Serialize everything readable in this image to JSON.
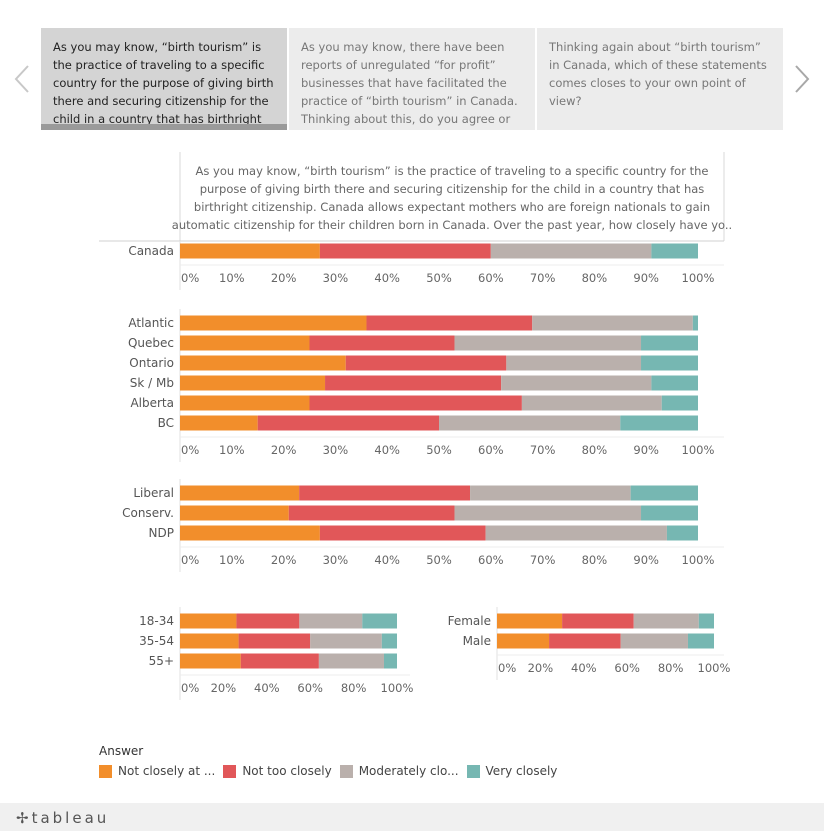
{
  "tabs": [
    {
      "text": "As you may know, “birth tourism” is the practice of traveling to a specific country for the purpose of giving birth there and securing citizenship for the child in a country that has birthright citizenship.",
      "active": true
    },
    {
      "text": "As you may know, there have been reports of unregulated “for profit” businesses that have facilitated the practice of “birth tourism” in Canada. Thinking about this, do you agree or disagree?",
      "active": false
    },
    {
      "text": " Thinking again about “birth tourism” in Canada, which of these statements comes closes to your own point of view?",
      "active": false
    }
  ],
  "question_lines": [
    "As you may know, “birth tourism” is the practice of traveling to a specific country for the",
    "purpose of giving birth there and securing citizenship for the child in a country that has",
    "birthright citizenship. Canada allows expectant mothers who are foreign nationals to gain",
    "automatic citizenship for their children born in Canada. Over the past year, how closely have yo.."
  ],
  "legend": {
    "title": "Answer",
    "items": [
      {
        "label": "Not closely at ...",
        "color": "#f28e2b"
      },
      {
        "label": "Not too closely",
        "color": "#e15759"
      },
      {
        "label": "Moderately clo...",
        "color": "#bab0ac"
      },
      {
        "label": "Very closely",
        "color": "#76b7b2"
      }
    ]
  },
  "footer": {
    "logo": "tableau"
  },
  "chart_data": [
    {
      "type": "bar",
      "stacked": true,
      "orientation": "horizontal",
      "categories": [
        "Canada"
      ],
      "series": [
        {
          "name": "Not closely at ...",
          "values": [
            27
          ]
        },
        {
          "name": "Not too closely",
          "values": [
            33
          ]
        },
        {
          "name": "Moderately clo...",
          "values": [
            31
          ]
        },
        {
          "name": "Very closely",
          "values": [
            9
          ]
        }
      ],
      "ticks": [
        "0%",
        "10%",
        "20%",
        "30%",
        "40%",
        "50%",
        "60%",
        "70%",
        "80%",
        "90%",
        "100%"
      ],
      "xlim": [
        0,
        100
      ]
    },
    {
      "type": "bar",
      "stacked": true,
      "orientation": "horizontal",
      "categories": [
        "Atlantic",
        "Quebec",
        "Ontario",
        "Sk / Mb",
        "Alberta",
        "BC"
      ],
      "series": [
        {
          "name": "Not closely at ...",
          "values": [
            36,
            25,
            32,
            28,
            25,
            15
          ]
        },
        {
          "name": "Not too closely",
          "values": [
            32,
            28,
            31,
            34,
            41,
            35
          ]
        },
        {
          "name": "Moderately clo...",
          "values": [
            31,
            36,
            26,
            29,
            27,
            35
          ]
        },
        {
          "name": "Very closely",
          "values": [
            1,
            11,
            11,
            9,
            7,
            15
          ]
        }
      ],
      "ticks": [
        "0%",
        "10%",
        "20%",
        "30%",
        "40%",
        "50%",
        "60%",
        "70%",
        "80%",
        "90%",
        "100%"
      ],
      "xlim": [
        0,
        100
      ]
    },
    {
      "type": "bar",
      "stacked": true,
      "orientation": "horizontal",
      "categories": [
        "Liberal",
        "Conserv.",
        "NDP"
      ],
      "series": [
        {
          "name": "Not closely at ...",
          "values": [
            23,
            21,
            27
          ]
        },
        {
          "name": "Not too closely",
          "values": [
            33,
            32,
            32
          ]
        },
        {
          "name": "Moderately clo...",
          "values": [
            31,
            36,
            35
          ]
        },
        {
          "name": "Very closely",
          "values": [
            13,
            11,
            6
          ]
        }
      ],
      "ticks": [
        "0%",
        "10%",
        "20%",
        "30%",
        "40%",
        "50%",
        "60%",
        "70%",
        "80%",
        "90%",
        "100%"
      ],
      "xlim": [
        0,
        100
      ]
    },
    {
      "type": "bar",
      "stacked": true,
      "orientation": "horizontal",
      "categories": [
        "18-34",
        "35-54",
        "55+"
      ],
      "series": [
        {
          "name": "Not closely at ...",
          "values": [
            26,
            27,
            28
          ]
        },
        {
          "name": "Not too closely",
          "values": [
            29,
            33,
            36
          ]
        },
        {
          "name": "Moderately clo...",
          "values": [
            29,
            33,
            30
          ]
        },
        {
          "name": "Very closely",
          "values": [
            16,
            7,
            6
          ]
        }
      ],
      "ticks": [
        "0%",
        "20%",
        "40%",
        "60%",
        "80%",
        "100%"
      ],
      "xlim": [
        0,
        100
      ]
    },
    {
      "type": "bar",
      "stacked": true,
      "orientation": "horizontal",
      "categories": [
        "Female",
        "Male"
      ],
      "series": [
        {
          "name": "Not closely at ...",
          "values": [
            30,
            24
          ]
        },
        {
          "name": "Not too closely",
          "values": [
            33,
            33
          ]
        },
        {
          "name": "Moderately clo...",
          "values": [
            30,
            31
          ]
        },
        {
          "name": "Very closely",
          "values": [
            7,
            12
          ]
        }
      ],
      "ticks": [
        "0%",
        "20%",
        "40%",
        "60%",
        "80%",
        "100%"
      ],
      "xlim": [
        0,
        100
      ]
    }
  ]
}
